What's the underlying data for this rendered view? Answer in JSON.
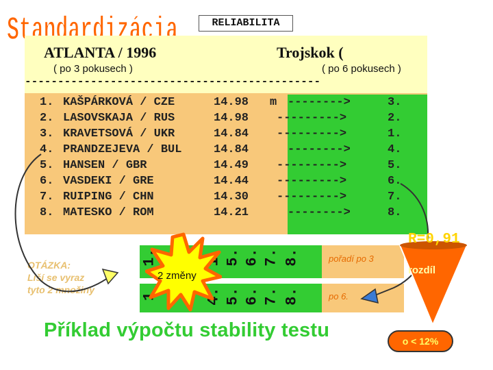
{
  "slide": {
    "title": "Standardizácia",
    "reliabilita": "RELIABILITA",
    "left_header": "ATLANTA / 1996",
    "left_sub": "( po 3 pokusech )",
    "right_header": "Trojskok (",
    "right_sub": "( po 6 pokusech )",
    "dashes": "---------------------------------------------",
    "unit": "m",
    "results": [
      {
        "rank": "1.",
        "name": "KAŠPÁRKOVÁ / CZE",
        "score": "14.98",
        "arrow": "-------->",
        "new_rank": "3."
      },
      {
        "rank": "2.",
        "name": "LASOVSKAJA / RUS",
        "score": "14.98",
        "arrow": "--------->",
        "new_rank": "2."
      },
      {
        "rank": "3.",
        "name": "KRAVETSOVÁ / UKR",
        "score": "14.84",
        "arrow": "--------->",
        "new_rank": "1."
      },
      {
        "rank": "4.",
        "name": "PRANDZEJEVA / BUL",
        "score": "14.84",
        "arrow": "-------->",
        "new_rank": "4."
      },
      {
        "rank": "5.",
        "name": "HANSEN / GBR",
        "score": "14.49",
        "arrow": "--------->",
        "new_rank": "5."
      },
      {
        "rank": "6.",
        "name": "VASDEKI / GRE",
        "score": "14.44",
        "arrow": "--------->",
        "new_rank": "6."
      },
      {
        "rank": "7.",
        "name": "RUIPING / CHN",
        "score": "14.30",
        "arrow": "--------->",
        "new_rank": "7."
      },
      {
        "rank": "8.",
        "name": "MATESKO / ROM",
        "score": "14.21",
        "arrow": "-------->",
        "new_rank": "8."
      }
    ],
    "strip_top": [
      "1.",
      "1.",
      "5.",
      "6.",
      "7.",
      "8."
    ],
    "strip_bottom": [
      "1",
      "4.",
      "5.",
      "6.",
      "7.",
      "8."
    ],
    "label_order3": "pořadí po 3",
    "label_order6": "po 6.",
    "question_line1": "OTÁZKA:",
    "question_line2": "Liší se vyraz",
    "question_line3": "tyto 2 množiny",
    "burst_text": "2 změny",
    "r_value": "R=0,91",
    "rozdil": "rozdíl",
    "o_text": "o < 12%",
    "footer": "Příklad výpočtu stability testu",
    "colors": {
      "title": "#ff6600",
      "panel": "#f8c87a",
      "panel_top": "#ffffbf",
      "green": "#33cc33",
      "funnel": "#ff6600",
      "burst": "#ffff00"
    }
  }
}
